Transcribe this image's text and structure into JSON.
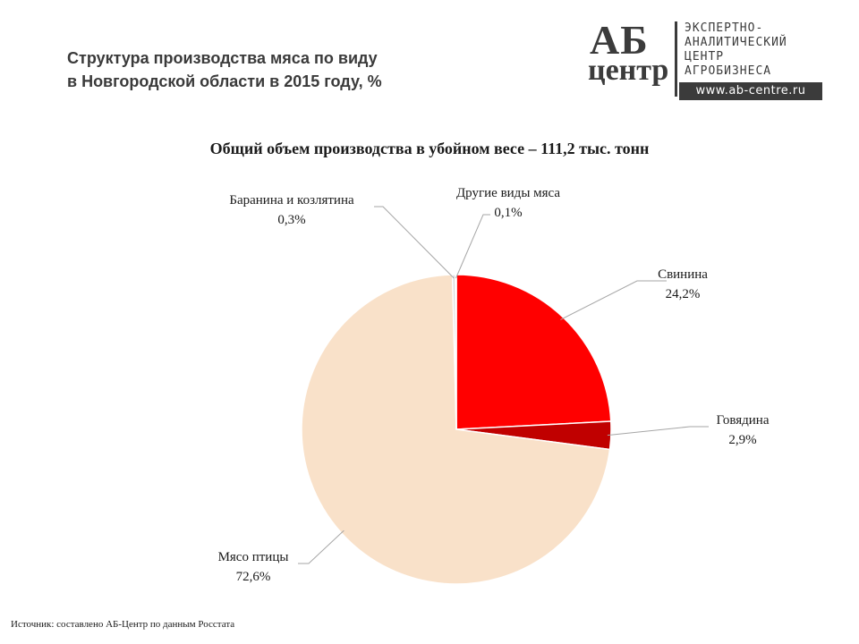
{
  "header": {
    "title_line1": "Структура производства мяса по виду",
    "title_line2": "в Новгородской области в 2015 году, %"
  },
  "logo": {
    "mark_line1": "АБ",
    "mark_line2": "центр",
    "text_line1": "ЭКСПЕРТНО-",
    "text_line2": "АНАЛИТИЧЕСКИЙ",
    "text_line3": "ЦЕНТР",
    "text_line4": "АГРОБИЗНЕСА",
    "url": "www.ab-centre.ru"
  },
  "chart_data": {
    "type": "pie",
    "title": "Общий объем производства  в убойном весе – 111,2 тыс. тонн",
    "slices": [
      {
        "name": "Свинина",
        "value": 24.2,
        "label": "24,2%",
        "color": "#ff0000"
      },
      {
        "name": "Говядина",
        "value": 2.9,
        "label": "2,9%",
        "color": "#c00000"
      },
      {
        "name": "Мясо птицы",
        "value": 72.6,
        "label": "72,6%",
        "color": "#f9e1c9"
      },
      {
        "name": "Баранина и козлятина",
        "value": 0.3,
        "label": "0,3%",
        "color": "#d9d9d9"
      },
      {
        "name": "Другие виды мяса",
        "value": 0.1,
        "label": "0,1%",
        "color": "#7f7f7f"
      }
    ]
  },
  "footer": {
    "source": "Источник:  составлено АБ-Центр  по данным Росстата"
  }
}
